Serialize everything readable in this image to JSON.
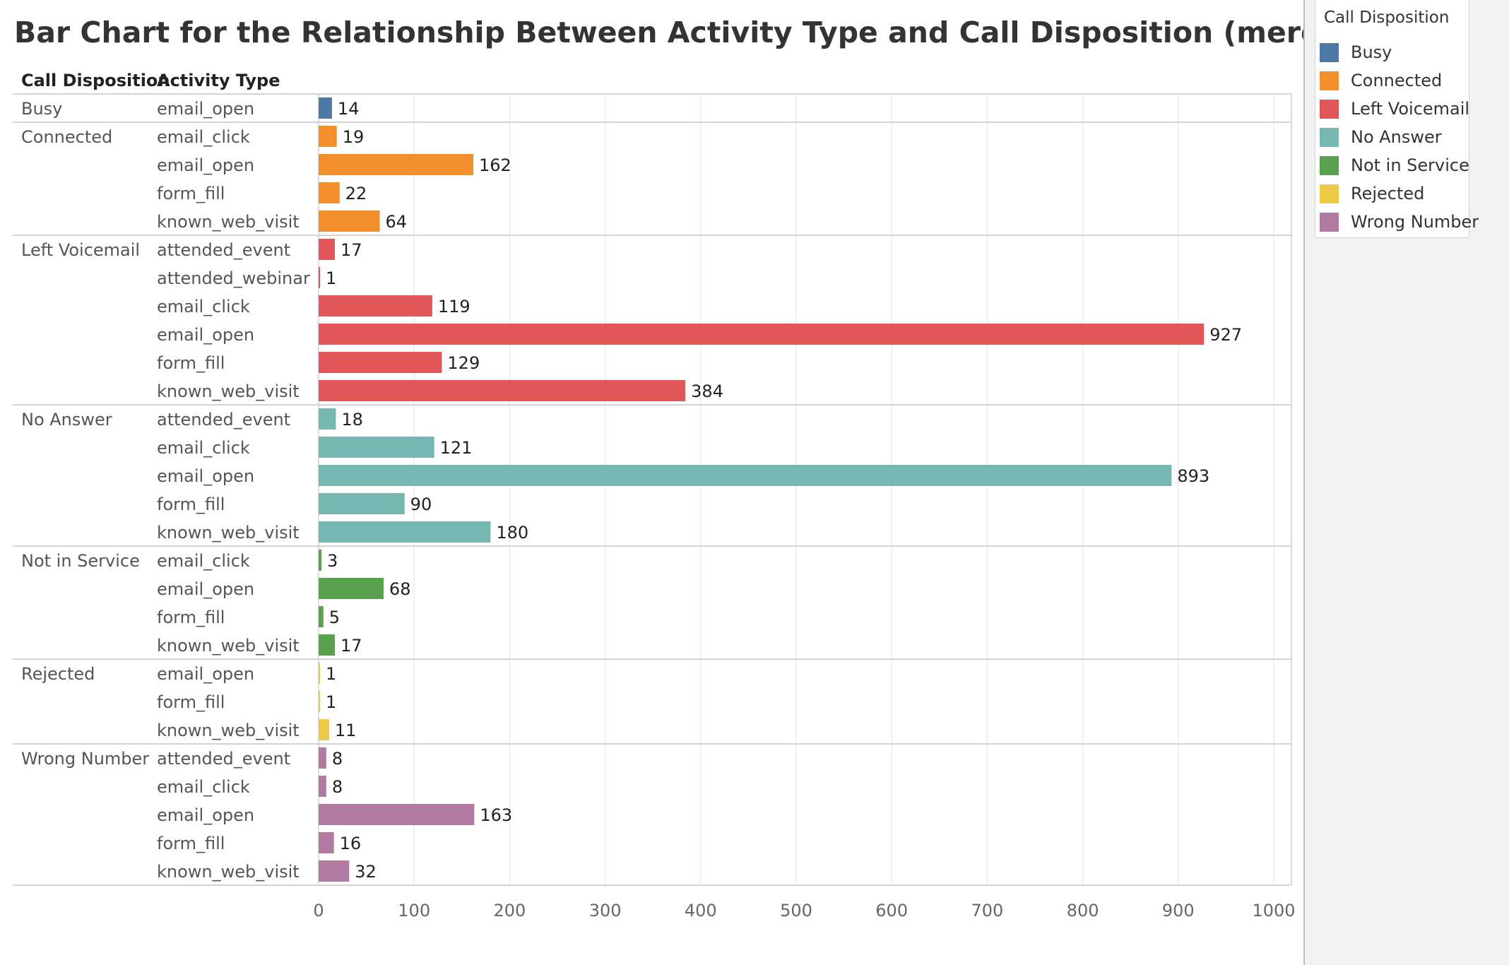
{
  "title": "Bar Chart for the Relationship Between Activity Type and Call Disposition (merge.csv)",
  "headers": {
    "disposition": "Call Disposition",
    "activity": "Activity Type"
  },
  "legend": {
    "title": "Call Disposition",
    "items": [
      {
        "label": "Busy",
        "color": "#4e79a7"
      },
      {
        "label": "Connected",
        "color": "#f28e2b"
      },
      {
        "label": "Left Voicemail",
        "color": "#e15759"
      },
      {
        "label": "No Answer",
        "color": "#76b7b2"
      },
      {
        "label": "Not in Service",
        "color": "#59a14f"
      },
      {
        "label": "Rejected",
        "color": "#edc948"
      },
      {
        "label": "Wrong Number",
        "color": "#b07aa1"
      }
    ]
  },
  "chart_data": {
    "type": "bar",
    "orientation": "horizontal",
    "xlim": [
      0,
      1000
    ],
    "xticks": [
      0,
      100,
      200,
      300,
      400,
      500,
      600,
      700,
      800,
      900,
      1000
    ],
    "grid": true,
    "legend_position": "top-right",
    "groups": [
      {
        "name": "Busy",
        "color": "#4e79a7",
        "rows": [
          {
            "label": "email_open",
            "value": 14
          }
        ]
      },
      {
        "name": "Connected",
        "color": "#f28e2b",
        "rows": [
          {
            "label": "email_click",
            "value": 19
          },
          {
            "label": "email_open",
            "value": 162
          },
          {
            "label": "form_fill",
            "value": 22
          },
          {
            "label": "known_web_visit",
            "value": 64
          }
        ]
      },
      {
        "name": "Left Voicemail",
        "color": "#e15759",
        "rows": [
          {
            "label": "attended_event",
            "value": 17
          },
          {
            "label": "attended_webinar",
            "value": 1
          },
          {
            "label": "email_click",
            "value": 119
          },
          {
            "label": "email_open",
            "value": 927
          },
          {
            "label": "form_fill",
            "value": 129
          },
          {
            "label": "known_web_visit",
            "value": 384
          }
        ]
      },
      {
        "name": "No Answer",
        "color": "#76b7b2",
        "rows": [
          {
            "label": "attended_event",
            "value": 18
          },
          {
            "label": "email_click",
            "value": 121
          },
          {
            "label": "email_open",
            "value": 893
          },
          {
            "label": "form_fill",
            "value": 90
          },
          {
            "label": "known_web_visit",
            "value": 180
          }
        ]
      },
      {
        "name": "Not in Service",
        "color": "#59a14f",
        "rows": [
          {
            "label": "email_click",
            "value": 3
          },
          {
            "label": "email_open",
            "value": 68
          },
          {
            "label": "form_fill",
            "value": 5
          },
          {
            "label": "known_web_visit",
            "value": 17
          }
        ]
      },
      {
        "name": "Rejected",
        "color": "#edc948",
        "rows": [
          {
            "label": "email_open",
            "value": 1
          },
          {
            "label": "form_fill",
            "value": 1
          },
          {
            "label": "known_web_visit",
            "value": 11
          }
        ]
      },
      {
        "name": "Wrong Number",
        "color": "#b07aa1",
        "rows": [
          {
            "label": "attended_event",
            "value": 8
          },
          {
            "label": "email_click",
            "value": 8
          },
          {
            "label": "email_open",
            "value": 163
          },
          {
            "label": "form_fill",
            "value": 16
          },
          {
            "label": "known_web_visit",
            "value": 32
          }
        ]
      }
    ]
  }
}
